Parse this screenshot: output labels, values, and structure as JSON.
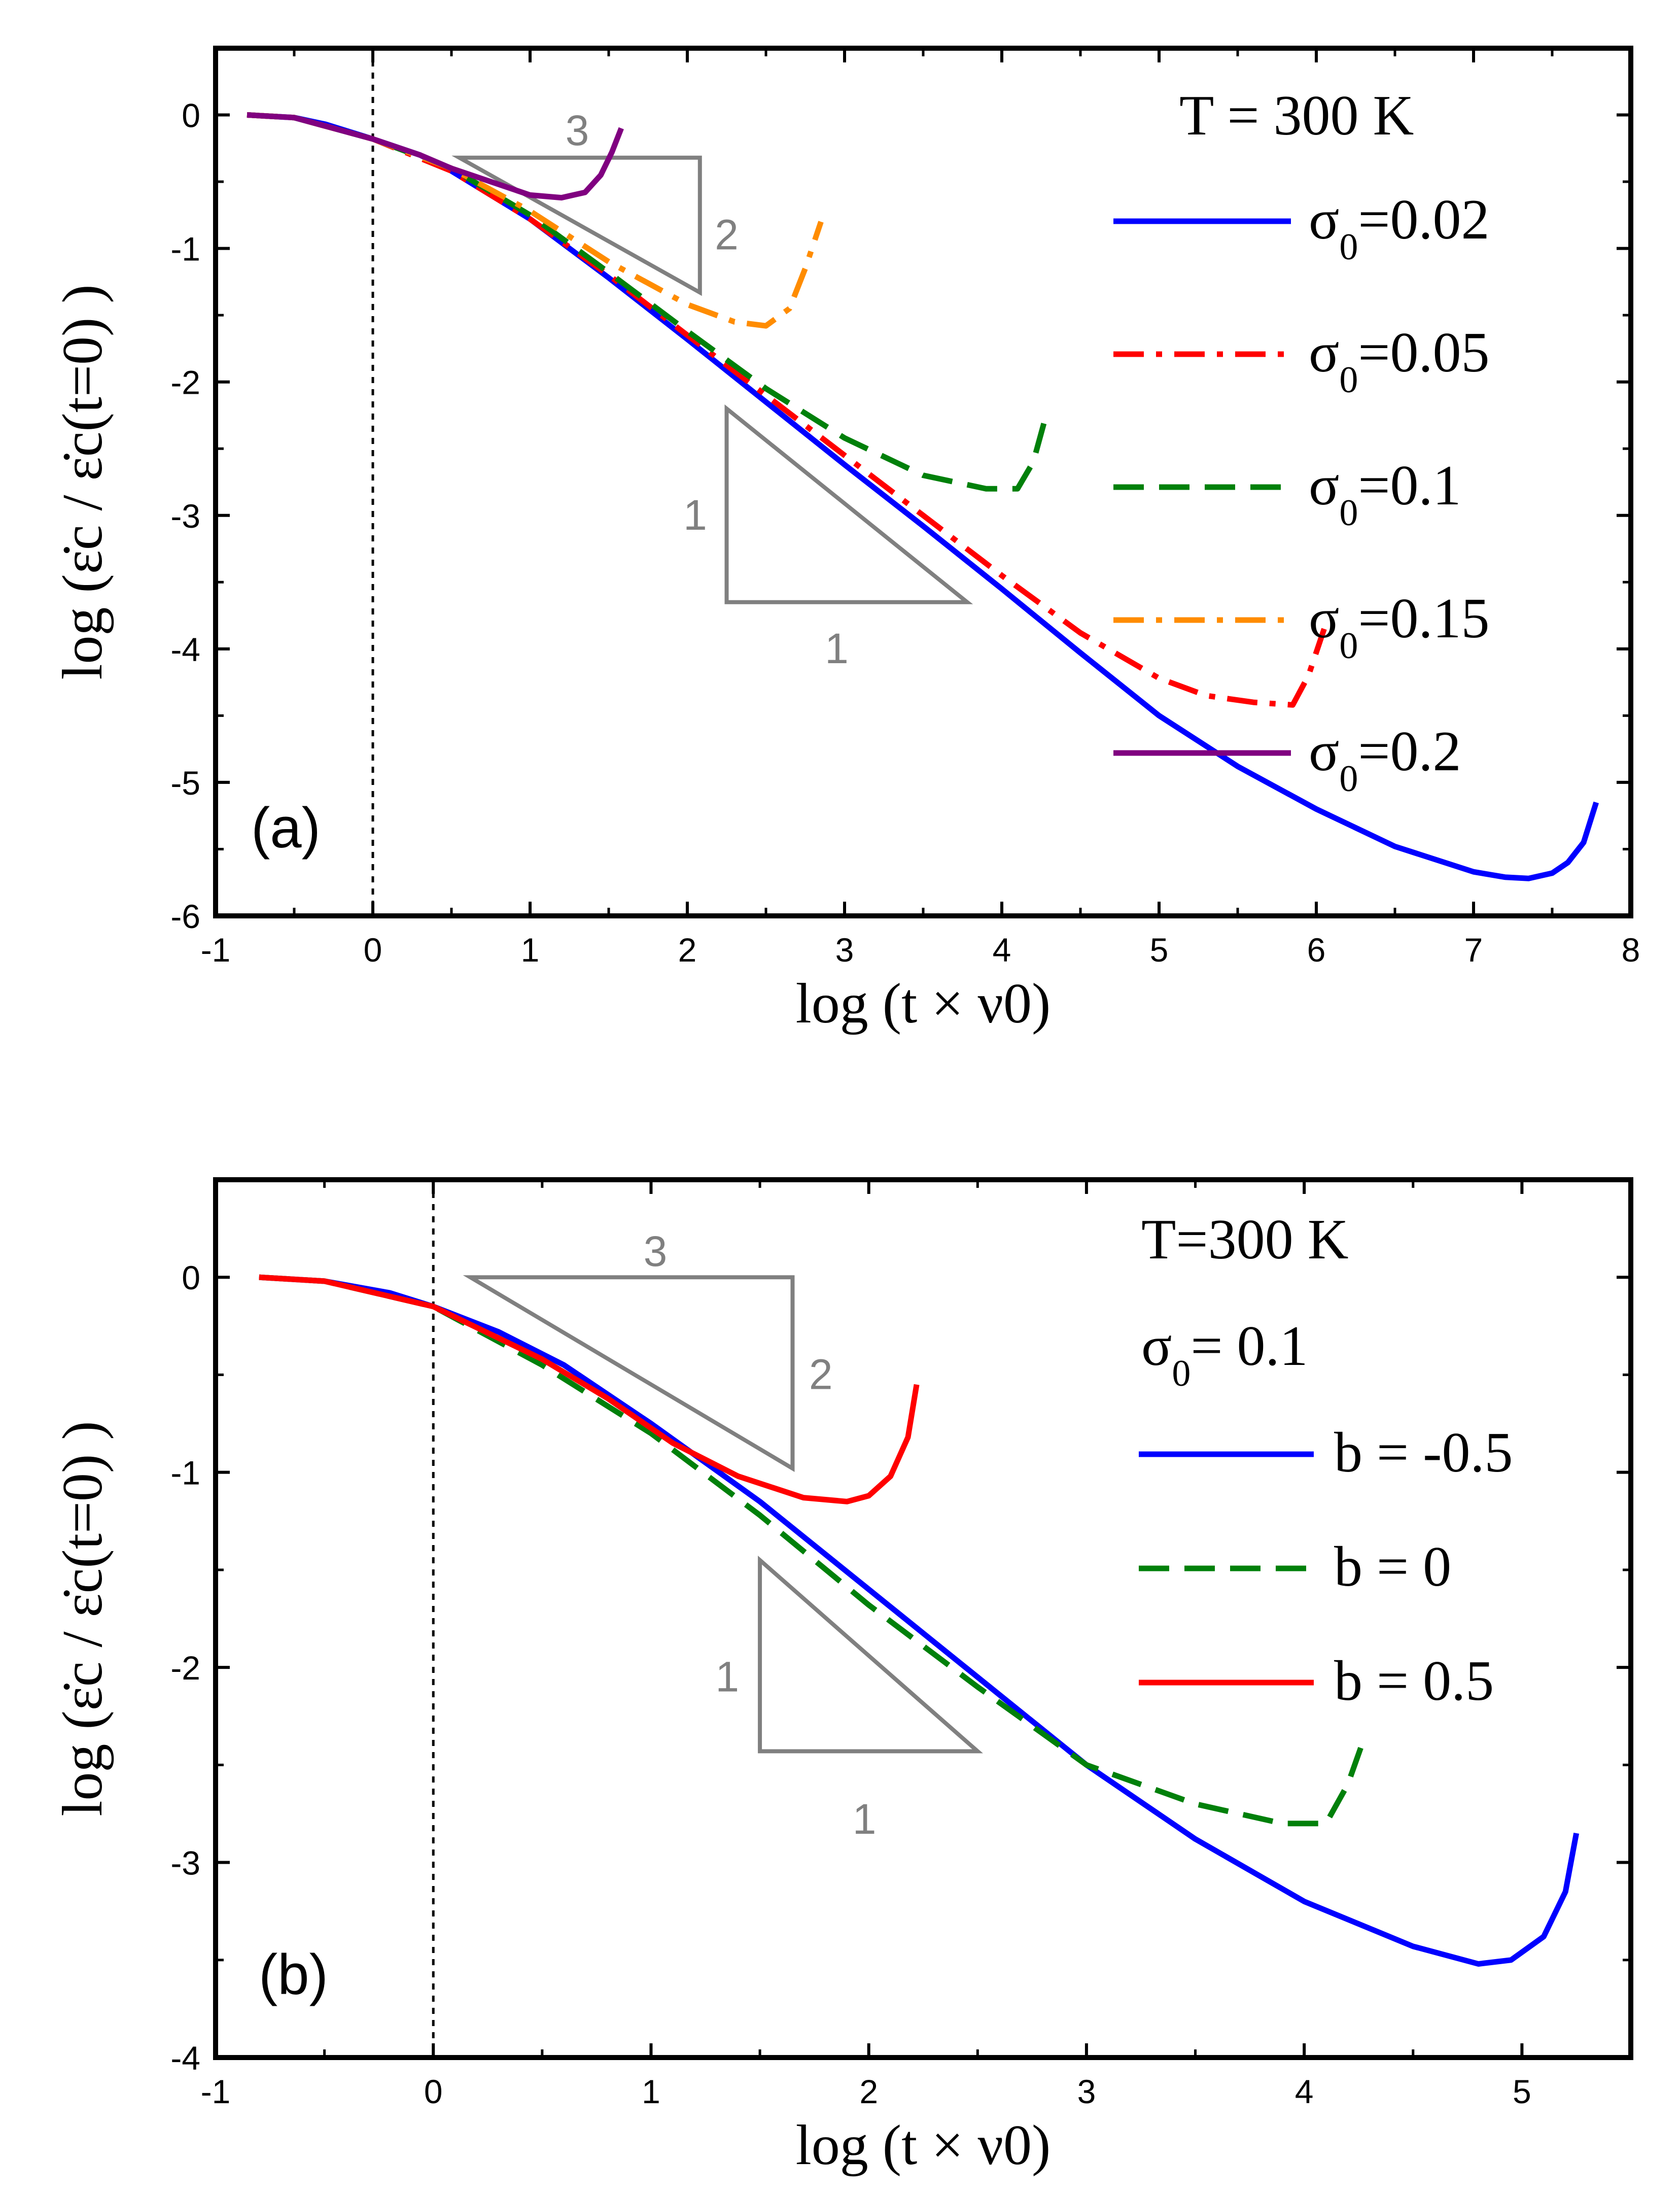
{
  "chart_data": [
    {
      "type": "line",
      "panel_label": "(a)",
      "xlabel": "log (t × ν0)",
      "ylabel": "log (ε̇c / ε̇c(t=0) )",
      "xlim": [
        -1,
        8
      ],
      "ylim": [
        -6,
        0.5
      ],
      "xticks": [
        "-1",
        "0",
        "1",
        "2",
        "3",
        "4",
        "5",
        "6",
        "7",
        "8"
      ],
      "yticks": [
        "0",
        "-1",
        "-2",
        "-3",
        "-4",
        "-5",
        "-6"
      ],
      "legend_title": "T = 300 K",
      "legend_placement": "top-right",
      "reference_line_x": 0,
      "slope_triangles": [
        {
          "run": "3",
          "rise": "2",
          "vertices": [
            [
              0.55,
              -0.32
            ],
            [
              2.08,
              -0.32
            ],
            [
              2.08,
              -1.33
            ]
          ],
          "run_label_pos": [
            1.3,
            -0.12
          ],
          "rise_label_pos": [
            2.25,
            -0.9
          ]
        },
        {
          "run": "1",
          "rise": "1",
          "vertices": [
            [
              2.25,
              -2.2
            ],
            [
              2.25,
              -3.65
            ],
            [
              3.78,
              -3.65
            ]
          ],
          "run_label_pos": [
            2.95,
            -4.0
          ],
          "rise_label_pos": [
            2.05,
            -3.0
          ]
        }
      ],
      "series": [
        {
          "name": "σ0=0.02",
          "name_main": "σ",
          "name_sub": "0",
          "name_tail": "=0.02",
          "color": "#0000ff",
          "dash": "solid",
          "x": [
            -0.8,
            -0.5,
            -0.3,
            0,
            0.3,
            0.5,
            1,
            1.5,
            2,
            2.5,
            3,
            3.5,
            4,
            4.5,
            5,
            5.5,
            6,
            6.5,
            7,
            7.2,
            7.35,
            7.5,
            7.6,
            7.7,
            7.78
          ],
          "y": [
            0,
            -0.02,
            -0.07,
            -0.18,
            -0.3,
            -0.42,
            -0.78,
            -1.22,
            -1.68,
            -2.15,
            -2.62,
            -3.08,
            -3.55,
            -4.03,
            -4.5,
            -4.88,
            -5.2,
            -5.48,
            -5.67,
            -5.71,
            -5.72,
            -5.68,
            -5.6,
            -5.45,
            -5.15
          ]
        },
        {
          "name": "σ0=0.05",
          "name_main": "σ",
          "name_sub": "0",
          "name_tail": "=0.05",
          "color": "#ff0000",
          "dash": "dashdot",
          "x": [
            -0.8,
            -0.5,
            0,
            0.5,
            1,
            1.5,
            2,
            2.5,
            3,
            3.5,
            4,
            4.5,
            5,
            5.3,
            5.6,
            5.85,
            5.95,
            6.05
          ],
          "y": [
            0,
            -0.02,
            -0.18,
            -0.42,
            -0.78,
            -1.2,
            -1.65,
            -2.1,
            -2.55,
            -3.0,
            -3.45,
            -3.88,
            -4.22,
            -4.35,
            -4.4,
            -4.42,
            -4.2,
            -3.85
          ]
        },
        {
          "name": "σ0=0.1",
          "name_main": "σ",
          "name_sub": "0",
          "name_tail": "=0.1",
          "color": "#00800a",
          "dash": "dash",
          "x": [
            -0.8,
            -0.5,
            0,
            0.5,
            1,
            1.5,
            2,
            2.5,
            3,
            3.5,
            3.9,
            4.1,
            4.2,
            4.27
          ],
          "y": [
            0,
            -0.02,
            -0.18,
            -0.4,
            -0.75,
            -1.18,
            -1.62,
            -2.05,
            -2.42,
            -2.7,
            -2.8,
            -2.8,
            -2.6,
            -2.3
          ]
        },
        {
          "name": "σ0=0.15",
          "name_main": "σ",
          "name_sub": "0",
          "name_tail": "=0.15",
          "color": "#ff8c00",
          "dash": "dashdot",
          "x": [
            -0.8,
            -0.5,
            0,
            0.5,
            1,
            1.5,
            2,
            2.3,
            2.5,
            2.65,
            2.75,
            2.85
          ],
          "y": [
            0,
            -0.02,
            -0.18,
            -0.4,
            -0.72,
            -1.1,
            -1.42,
            -1.55,
            -1.58,
            -1.45,
            -1.15,
            -0.8
          ]
        },
        {
          "name": "σ0=0.2",
          "name_main": "σ",
          "name_sub": "0",
          "name_tail": "=0.2",
          "color": "#800080",
          "dash": "solid",
          "x": [
            -0.8,
            -0.5,
            0,
            0.3,
            0.5,
            0.8,
            1.0,
            1.2,
            1.35,
            1.45,
            1.52,
            1.58
          ],
          "y": [
            0,
            -0.02,
            -0.18,
            -0.3,
            -0.4,
            -0.52,
            -0.6,
            -0.62,
            -0.58,
            -0.45,
            -0.28,
            -0.1
          ]
        }
      ]
    },
    {
      "type": "line",
      "panel_label": "(b)",
      "xlabel": "log (t × ν0)",
      "ylabel": "log (ε̇c / ε̇c(t=0) )",
      "xlim": [
        -1,
        5.5
      ],
      "ylim": [
        -4,
        0.5
      ],
      "xticks": [
        "-1",
        "0",
        "1",
        "2",
        "3",
        "4",
        "5"
      ],
      "yticks": [
        "0",
        "-1",
        "-2",
        "-3",
        "-4"
      ],
      "legend_title": "T=300 K",
      "legend_subtitle": "σ0= 0.1",
      "legend_subtitle_main": "σ",
      "legend_subtitle_sub": "0",
      "legend_subtitle_tail": "= 0.1",
      "legend_placement": "top-right",
      "reference_line_x": 0,
      "slope_triangles": [
        {
          "run": "3",
          "rise": "2",
          "vertices": [
            [
              0.17,
              0
            ],
            [
              1.65,
              0
            ],
            [
              1.65,
              -0.98
            ]
          ],
          "run_label_pos": [
            1.02,
            0.13
          ],
          "rise_label_pos": [
            1.78,
            -0.5
          ]
        },
        {
          "run": "1",
          "rise": "1",
          "vertices": [
            [
              1.5,
              -1.45
            ],
            [
              1.5,
              -2.43
            ],
            [
              2.5,
              -2.43
            ]
          ],
          "run_label_pos": [
            1.98,
            -2.78
          ],
          "rise_label_pos": [
            1.35,
            -2.05
          ]
        }
      ],
      "series": [
        {
          "name": "b = -0.5",
          "color": "#0000ff",
          "dash": "solid",
          "x": [
            -0.8,
            -0.5,
            -0.2,
            0,
            0.3,
            0.6,
            1,
            1.5,
            2,
            2.5,
            3,
            3.5,
            4,
            4.5,
            4.8,
            4.95,
            5.1,
            5.2,
            5.25
          ],
          "y": [
            0,
            -0.02,
            -0.08,
            -0.15,
            -0.28,
            -0.45,
            -0.75,
            -1.15,
            -1.6,
            -2.05,
            -2.5,
            -2.88,
            -3.2,
            -3.43,
            -3.52,
            -3.5,
            -3.38,
            -3.15,
            -2.85
          ]
        },
        {
          "name": "b = 0",
          "color": "#00800a",
          "dash": "dash",
          "x": [
            -0.8,
            -0.5,
            0,
            0.5,
            1,
            1.5,
            2,
            2.5,
            3,
            3.5,
            3.9,
            4.1,
            4.2,
            4.27
          ],
          "y": [
            0,
            -0.02,
            -0.15,
            -0.45,
            -0.8,
            -1.22,
            -1.68,
            -2.1,
            -2.5,
            -2.7,
            -2.8,
            -2.8,
            -2.6,
            -2.38
          ]
        },
        {
          "name": "b = 0.5",
          "color": "#ff0000",
          "dash": "solid",
          "x": [
            -0.8,
            -0.5,
            0,
            0.5,
            0.8,
            1.1,
            1.4,
            1.7,
            1.9,
            2.0,
            2.1,
            2.18,
            2.22
          ],
          "y": [
            0,
            -0.02,
            -0.15,
            -0.42,
            -0.62,
            -0.85,
            -1.02,
            -1.13,
            -1.15,
            -1.12,
            -1.02,
            -0.82,
            -0.55
          ]
        }
      ]
    }
  ]
}
